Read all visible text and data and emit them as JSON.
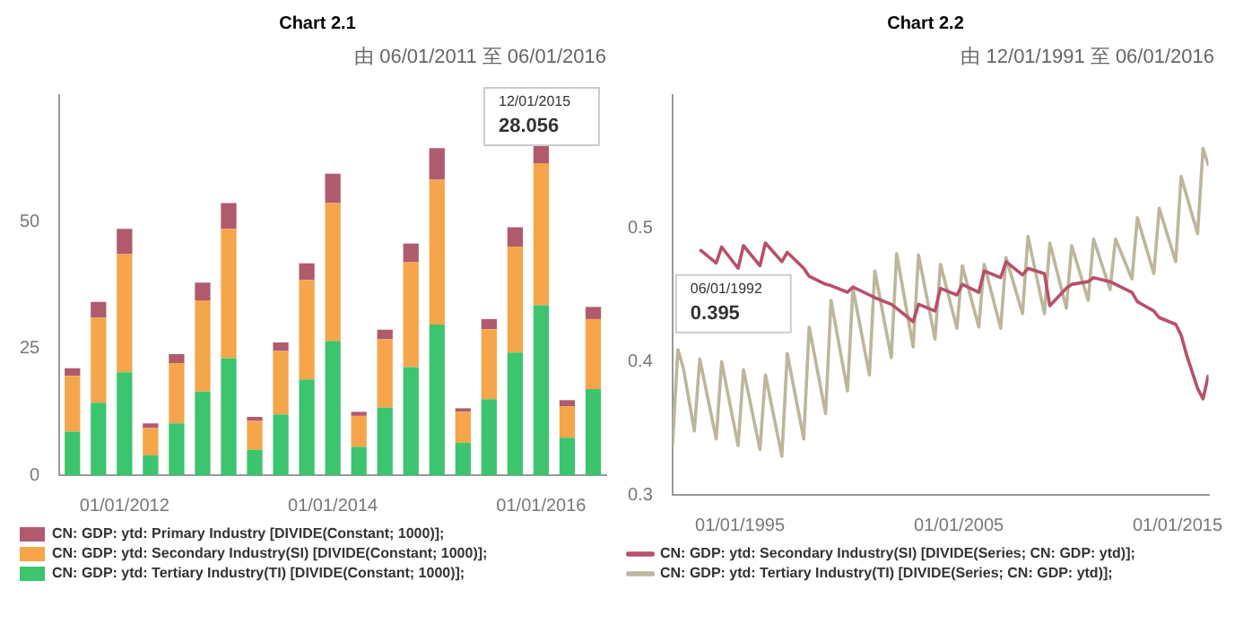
{
  "chart_data": [
    {
      "type": "bar",
      "title": "Chart 2.1",
      "subtitle": "由 06/01/2011 至 06/01/2016",
      "stacked": true,
      "legend": "bottom",
      "ylim": [
        0,
        75
      ],
      "yticks": [
        0,
        25,
        50
      ],
      "categories": [
        null,
        null,
        "01/01/2012",
        null,
        null,
        null,
        null,
        null,
        null,
        null,
        "01/01/2014",
        null,
        null,
        null,
        null,
        null,
        null,
        null,
        "01/01/2016",
        null,
        null
      ],
      "series": [
        {
          "name": "CN: GDP: ytd: Tertiary Industry(TI) [DIVIDE(Constant; 1000)];",
          "color": "#3cc46e",
          "values": [
            8.6,
            14.3,
            20.3,
            3.9,
            10.2,
            16.5,
            23.1,
            5.0,
            12.0,
            18.9,
            26.5,
            5.6,
            13.3,
            21.3,
            29.7,
            6.4,
            15.0,
            24.2,
            33.5,
            7.4,
            17.0
          ]
        },
        {
          "name": "CN: GDP: ytd: Secondary Industry(SI) [DIVIDE(Constant; 1000)];",
          "color": "#f5a54a",
          "values": [
            11.0,
            16.8,
            23.3,
            5.4,
            11.9,
            18.0,
            25.5,
            5.7,
            12.5,
            19.6,
            27.2,
            6.1,
            13.5,
            20.7,
            28.6,
            6.1,
            13.8,
            20.9,
            28.056,
            6.2,
            13.8
          ]
        },
        {
          "name": "CN: GDP: ytd: Primary Industry [DIVIDE(Constant; 1000)];",
          "color": "#b05a6e",
          "values": [
            1.5,
            3.1,
            5.0,
            0.9,
            1.8,
            3.5,
            5.1,
            0.8,
            1.7,
            3.3,
            5.8,
            0.8,
            1.9,
            3.7,
            6.2,
            0.7,
            2.0,
            3.8,
            3.5,
            1.2,
            2.4
          ]
        }
      ],
      "annotations": [
        "12/01/2015",
        "28.056"
      ]
    },
    {
      "type": "line",
      "title": "Chart 2.2",
      "subtitle": "由 12/01/1991 至 06/01/2016",
      "legend": "bottom",
      "ylim": [
        0.3,
        0.6
      ],
      "yticks": [
        0.3,
        0.4,
        0.5
      ],
      "xlim": [
        "1991-12",
        "2016-06"
      ],
      "xticks": [
        {
          "value": "1995-01-01",
          "label": "01/01/1995"
        },
        {
          "value": "2005-01-01",
          "label": "01/01/2005"
        },
        {
          "value": "2015-01-01",
          "label": "01/01/2015"
        }
      ],
      "series": [
        {
          "name": "CN: GDP: ytd: Secondary Industry(SI) [DIVIDE(Series; CN: GDP: ytd)];",
          "color": "#b8506a",
          "x": [
            "1993-03",
            "1993-12",
            "1994-03",
            "1994-12",
            "1995-03",
            "1995-12",
            "1996-03",
            "1996-12",
            "1997-03",
            "1997-12",
            "1998-03",
            "1998-12",
            "1999-03",
            "1999-12",
            "2000-03",
            "2000-12",
            "2001-03",
            "2001-12",
            "2002-03",
            "2002-12",
            "2003-03",
            "2003-12",
            "2004-03",
            "2004-12",
            "2005-03",
            "2005-12",
            "2006-03",
            "2006-12",
            "2007-03",
            "2007-12",
            "2008-03",
            "2008-12",
            "2009-03",
            "2009-12",
            "2010-03",
            "2010-12",
            "2011-03",
            "2011-12",
            "2012-03",
            "2012-12",
            "2013-03",
            "2013-12",
            "2014-03",
            "2014-12",
            "2015-03",
            "2015-06",
            "2015-12",
            "2016-03",
            "2016-06"
          ],
          "values": [
            0.484,
            0.474,
            0.486,
            0.47,
            0.487,
            0.472,
            0.489,
            0.475,
            0.482,
            0.47,
            0.464,
            0.458,
            0.457,
            0.452,
            0.456,
            0.45,
            0.448,
            0.443,
            0.44,
            0.43,
            0.443,
            0.438,
            0.455,
            0.45,
            0.458,
            0.452,
            0.468,
            0.463,
            0.475,
            0.465,
            0.47,
            0.466,
            0.442,
            0.455,
            0.458,
            0.46,
            0.463,
            0.46,
            0.458,
            0.452,
            0.445,
            0.438,
            0.433,
            0.428,
            0.42,
            0.405,
            0.38,
            0.372,
            0.39
          ]
        },
        {
          "name": "CN: GDP: ytd: Tertiary Industry(TI) [DIVIDE(Series; CN: GDP: ytd)];",
          "color": "#bcb79c",
          "x": [
            "1991-12",
            "1992-03",
            "1992-06",
            "1992-12",
            "1993-03",
            "1993-12",
            "1994-03",
            "1994-12",
            "1995-03",
            "1995-12",
            "1996-03",
            "1996-12",
            "1997-03",
            "1997-12",
            "1998-03",
            "1998-12",
            "1999-03",
            "1999-12",
            "2000-03",
            "2000-12",
            "2001-03",
            "2001-12",
            "2002-03",
            "2002-12",
            "2003-03",
            "2003-12",
            "2004-03",
            "2004-12",
            "2005-03",
            "2005-12",
            "2006-03",
            "2006-12",
            "2007-03",
            "2007-12",
            "2008-03",
            "2008-12",
            "2009-03",
            "2009-12",
            "2010-03",
            "2010-12",
            "2011-03",
            "2011-12",
            "2012-03",
            "2012-12",
            "2013-03",
            "2013-12",
            "2014-03",
            "2014-12",
            "2015-03",
            "2015-12",
            "2016-03",
            "2016-06"
          ],
          "values": [
            0.337,
            0.409,
            0.395,
            0.348,
            0.402,
            0.342,
            0.4,
            0.337,
            0.394,
            0.334,
            0.39,
            0.329,
            0.406,
            0.342,
            0.426,
            0.361,
            0.446,
            0.378,
            0.455,
            0.39,
            0.468,
            0.403,
            0.481,
            0.411,
            0.48,
            0.417,
            0.473,
            0.425,
            0.472,
            0.426,
            0.473,
            0.425,
            0.478,
            0.436,
            0.494,
            0.436,
            0.489,
            0.44,
            0.487,
            0.446,
            0.492,
            0.454,
            0.492,
            0.462,
            0.508,
            0.466,
            0.515,
            0.475,
            0.539,
            0.496,
            0.56,
            0.547
          ]
        }
      ],
      "annotations": [
        "06/01/1992",
        "0.395"
      ]
    }
  ]
}
